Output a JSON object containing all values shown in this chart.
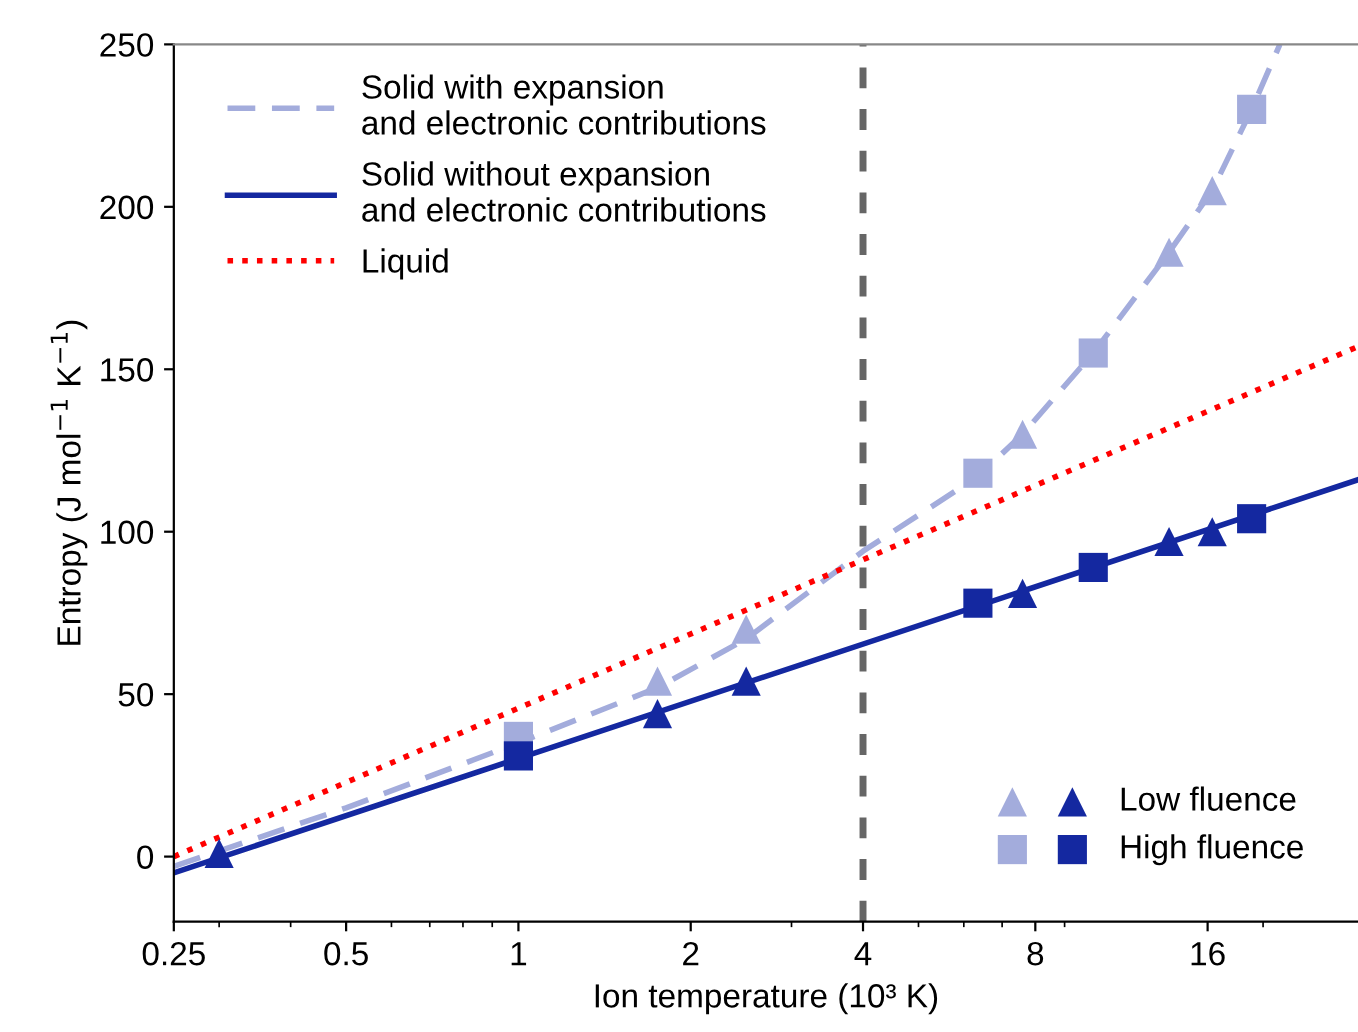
{
  "chart_data": {
    "type": "line",
    "xlabel": "Ion temperature (10³ K)",
    "ylabel": "Entropy (J mol$^{−1}$ K$^{−1}$)",
    "log": "x",
    "xlim": [
      0.25,
      29.3
    ],
    "xticks": [
      0.25,
      0.5,
      1,
      2,
      4,
      8,
      16
    ],
    "ylim": [
      -20,
      250
    ],
    "yticks": [
      0,
      50,
      100,
      150,
      200,
      250
    ],
    "grid": false,
    "legend": "top left",
    "ref_lines": [
      {
        "axis": "x",
        "value": 4,
        "color": "#666666",
        "line_style": "dashed"
      }
    ],
    "series": [
      {
        "name": "Solid with expansion\nand electronic contributions",
        "line_style": "dashed",
        "marker": "none",
        "color": "#a3acdc",
        "x": [
          0.25,
          0.5,
          1,
          1.75,
          2.5,
          4,
          6.35,
          7.6,
          10.1,
          13.7,
          16.3,
          19.1,
          21.4
        ],
        "values": [
          -3,
          15,
          35,
          52,
          67,
          94,
          117,
          130,
          155,
          186,
          205,
          230,
          250
        ]
      },
      {
        "name": "Solid without expansion\nand electronic contributions",
        "line_style": "solid",
        "marker": "none",
        "color": "#1428a0",
        "x": [
          0.25,
          29.3
        ],
        "values": [
          -5,
          116
        ]
      },
      {
        "name": "Liquid",
        "line_style": "dotted",
        "marker": "none",
        "color": "#ff0000",
        "x": [
          0.25,
          29.3
        ],
        "values": [
          0,
          157
        ]
      },
      {
        "type": "scatter",
        "marker": "triangle",
        "color": "#a3acdc",
        "x": [
          1.75,
          2.5,
          7.6,
          13.7,
          16.3
        ],
        "values": [
          54,
          70,
          130,
          186,
          205
        ]
      },
      {
        "name": "Low fluence",
        "type": "scatter",
        "marker": "triangle",
        "color": "#1428a0",
        "x": [
          0.3,
          1.75,
          2.5,
          7.6,
          13.7,
          16.3
        ],
        "values": [
          1,
          44,
          54,
          81,
          97,
          100
        ]
      },
      {
        "type": "scatter",
        "marker": "square",
        "color": "#a3acdc",
        "x": [
          1.0,
          6.35,
          10.1,
          19.1
        ],
        "values": [
          37,
          118,
          155,
          230
        ]
      },
      {
        "name": "High fluence",
        "type": "scatter",
        "marker": "square",
        "color": "#1428a0",
        "x": [
          1.0,
          6.35,
          10.1,
          19.1
        ],
        "values": [
          31,
          78,
          89,
          104
        ]
      }
    ]
  }
}
